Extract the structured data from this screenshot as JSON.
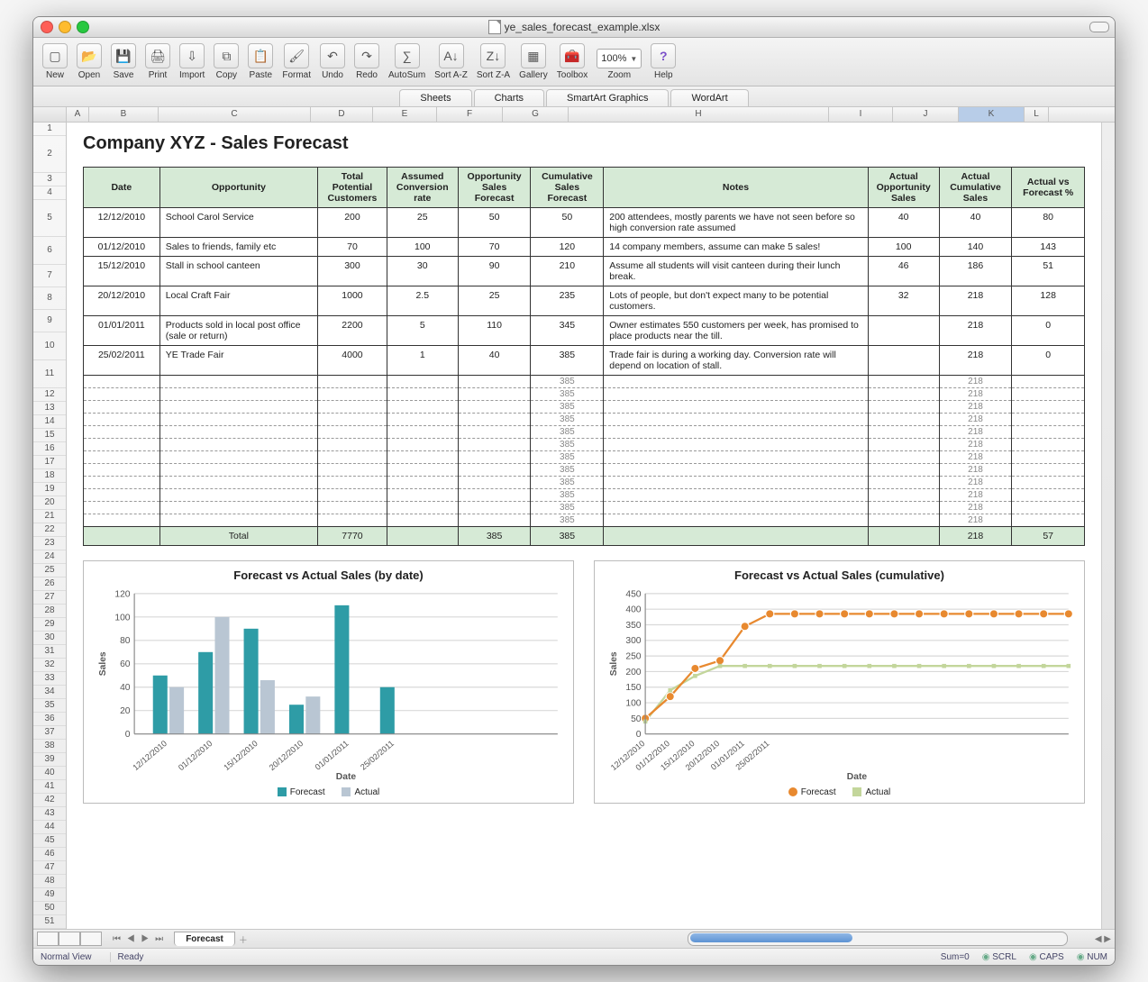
{
  "window": {
    "filename": "ye_sales_forecast_example.xlsx"
  },
  "toolbar": {
    "buttons": [
      "New",
      "Open",
      "Save",
      "Print",
      "Import",
      "Copy",
      "Paste",
      "Format",
      "Undo",
      "Redo",
      "AutoSum",
      "Sort A-Z",
      "Sort Z-A",
      "Gallery",
      "Toolbox"
    ],
    "zoom_value": "100%",
    "zoom_label": "Zoom",
    "help_label": "Help"
  },
  "ribbon_tabs": [
    "Sheets",
    "Charts",
    "SmartArt Graphics",
    "WordArt"
  ],
  "columns": [
    "A",
    "B",
    "C",
    "D",
    "E",
    "F",
    "G",
    "H",
    "I",
    "J",
    "K",
    "L"
  ],
  "selected_column": "K",
  "row_numbers_tall": [
    1,
    2,
    3,
    4,
    5,
    6,
    7,
    8,
    9,
    10,
    11
  ],
  "row_numbers_short": [
    12,
    13,
    14,
    15,
    16,
    17,
    18,
    19,
    20,
    21,
    22,
    23,
    24,
    25,
    26,
    27,
    28,
    29,
    30,
    31,
    32,
    33,
    34,
    35,
    36,
    37,
    38,
    39,
    40,
    41,
    42,
    43,
    44,
    45,
    46,
    47,
    48,
    49,
    50,
    51
  ],
  "sheet": {
    "title": "Company XYZ - Sales Forecast",
    "headers": [
      "Date",
      "Opportunity",
      "Total Potential Customers",
      "Assumed Conversion rate",
      "Opportunity Sales Forecast",
      "Cumulative Sales Forecast",
      "Notes",
      "Actual Opportunity Sales",
      "Actual Cumulative Sales",
      "Actual vs Forecast %"
    ],
    "rows": [
      {
        "date": "12/12/2010",
        "opp": "School Carol Service",
        "tpc": "200",
        "acr": "25",
        "osf": "50",
        "csf": "50",
        "notes": "200 attendees, mostly parents we have not seen before so high conversion rate assumed",
        "aos": "40",
        "acs": "40",
        "avf": "80"
      },
      {
        "date": "01/12/2010",
        "opp": "Sales to friends, family etc",
        "tpc": "70",
        "acr": "100",
        "osf": "70",
        "csf": "120",
        "notes": "14 company members, assume can make 5 sales!",
        "aos": "100",
        "acs": "140",
        "avf": "143"
      },
      {
        "date": "15/12/2010",
        "opp": "Stall in school canteen",
        "tpc": "300",
        "acr": "30",
        "osf": "90",
        "csf": "210",
        "notes": "Assume all students will visit canteen during their lunch break.",
        "aos": "46",
        "acs": "186",
        "avf": "51"
      },
      {
        "date": "20/12/2010",
        "opp": "Local Craft Fair",
        "tpc": "1000",
        "acr": "2.5",
        "osf": "25",
        "csf": "235",
        "notes": "Lots of people, but don't expect many to be potential customers.",
        "aos": "32",
        "acs": "218",
        "avf": "128"
      },
      {
        "date": "01/01/2011",
        "opp": "Products sold in local post office (sale or return)",
        "tpc": "2200",
        "acr": "5",
        "osf": "110",
        "csf": "345",
        "notes": "Owner estimates 550 customers per week, has promised to place products near the till.",
        "aos": "",
        "acs": "218",
        "avf": "0"
      },
      {
        "date": "25/02/2011",
        "opp": "YE Trade Fair",
        "tpc": "4000",
        "acr": "1",
        "osf": "40",
        "csf": "385",
        "notes": "Trade fair is during a working day. Conversion rate will depend on location of stall.",
        "aos": "",
        "acs": "218",
        "avf": "0"
      }
    ],
    "extra_rows": {
      "count": 12,
      "csf": "385",
      "acs": "218"
    },
    "totals": {
      "label": "Total",
      "tpc": "7770",
      "osf": "385",
      "csf": "385",
      "acs": "218",
      "avf": "57"
    }
  },
  "chart1": {
    "type": "bar",
    "title": "Forecast vs Actual Sales (by date)",
    "xlabel": "Date",
    "ylabel": "Sales",
    "categories": [
      "12/12/2010",
      "01/12/2010",
      "15/12/2010",
      "20/12/2010",
      "01/01/2011",
      "25/02/2011"
    ],
    "forecast": [
      50,
      70,
      90,
      25,
      110,
      40
    ],
    "actual": [
      40,
      100,
      46,
      32,
      0,
      0
    ],
    "ylim": [
      0,
      120
    ],
    "ytick_step": 20,
    "forecast_color": "#2e9ca6",
    "actual_color": "#b9c6d3",
    "grid_color": "#d9d9d9",
    "text_color": "#555",
    "title_fontsize": 13,
    "label_fontsize": 10
  },
  "chart2": {
    "type": "line",
    "title": "Forecast vs Actual Sales (cumulative)",
    "xlabel": "Date",
    "ylabel": "Sales",
    "categories": [
      "12/12/2010",
      "01/12/2010",
      "15/12/2010",
      "20/12/2010",
      "01/01/2011",
      "25/02/2011"
    ],
    "forecast": [
      50,
      120,
      210,
      235,
      345,
      385
    ],
    "actual": [
      40,
      140,
      186,
      218,
      218,
      218
    ],
    "plateau_forecast": 385,
    "plateau_actual": 218,
    "plateau_points": 12,
    "ylim": [
      0,
      450
    ],
    "ytick_step": 50,
    "forecast_color": "#e8892f",
    "actual_color": "#c3d69b",
    "grid_color": "#d9d9d9",
    "text_color": "#555",
    "marker_size": 4,
    "title_fontsize": 13,
    "label_fontsize": 10
  },
  "legend": {
    "forecast": "Forecast",
    "actual": "Actual"
  },
  "bottom": {
    "sheet_tab": "Forecast",
    "view_label": "Normal View",
    "ready": "Ready",
    "sum": "Sum=0",
    "scrl": "SCRL",
    "caps": "CAPS",
    "num": "NUM"
  },
  "colors": {
    "header_bg": "#d6ead6",
    "window_bg": "#ececec"
  }
}
